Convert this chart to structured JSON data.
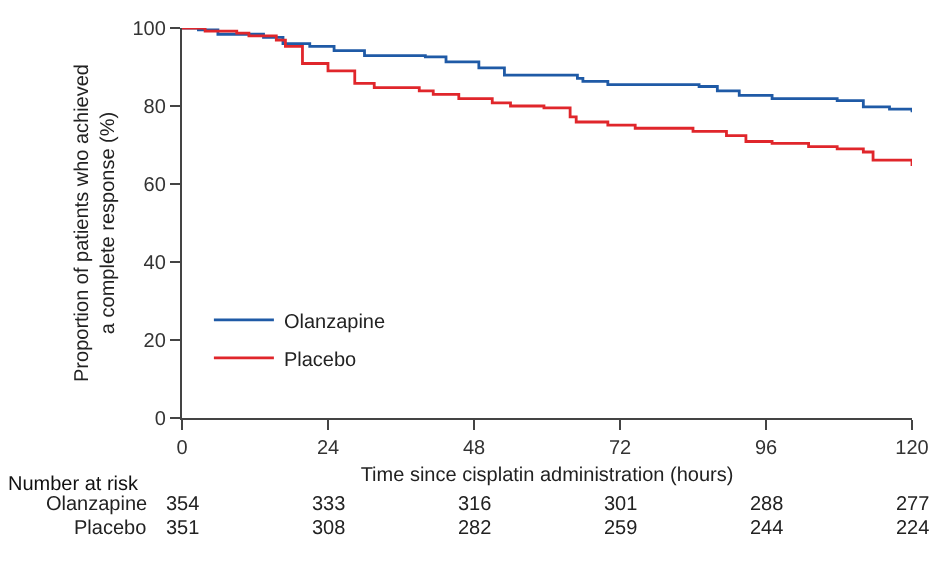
{
  "chart_data": {
    "type": "step",
    "xlabel": "Time since cisplatin administration (hours)",
    "ylabel": "Proportion of patients who achieved a complete response (%)",
    "xlim": [
      0,
      120
    ],
    "xticks": [
      0,
      24,
      48,
      72,
      96,
      120
    ],
    "ylim": [
      0,
      100
    ],
    "yticks": [
      0,
      20,
      40,
      60,
      80,
      100
    ],
    "legend": "bottom left",
    "marker": "none",
    "line_style": "solid",
    "series": [
      {
        "name": "Olanzapine",
        "color": "#1f5aa6",
        "x": [
          0,
          2.7,
          5.9,
          13.4,
          16.6,
          21,
          25,
          30,
          40,
          43.4,
          48.8,
          53,
          65,
          65.9,
          70,
          85,
          88,
          91.6,
          97,
          107.7,
          112,
          116.3,
          120
        ],
        "values": [
          100,
          99.5,
          98.4,
          97.6,
          96,
          95.3,
          94.2,
          92.9,
          92.6,
          91.3,
          89.8,
          87.9,
          87.1,
          86.3,
          85.5,
          85,
          83.9,
          82.7,
          81.9,
          81.4,
          79.8,
          79.2,
          78.4
        ]
      },
      {
        "name": "Placebo",
        "color": "#e0262b",
        "x": [
          0,
          3.8,
          9,
          11,
          15.5,
          17,
          19.8,
          24,
          28.4,
          31.6,
          39,
          41.3,
          45.5,
          51,
          54,
          59.5,
          63.8,
          64.8,
          70,
          74.5,
          84,
          89.5,
          92.7,
          97,
          103,
          107.7,
          112,
          113.6,
          120
        ],
        "values": [
          100,
          99.2,
          98.7,
          98,
          96.9,
          95.3,
          90.9,
          89,
          85.8,
          84.7,
          83.9,
          83,
          81.9,
          80.8,
          80,
          79.5,
          77.2,
          75.9,
          75.1,
          74.3,
          73.5,
          72.4,
          70.9,
          70.4,
          69.6,
          69,
          68.2,
          66.1,
          64.6
        ]
      }
    ],
    "annotations": [
      "Number at risk",
      "354",
      "333",
      "316",
      "301",
      "288",
      "277",
      "351",
      "308",
      "282",
      "259",
      "244",
      "224"
    ]
  }
}
